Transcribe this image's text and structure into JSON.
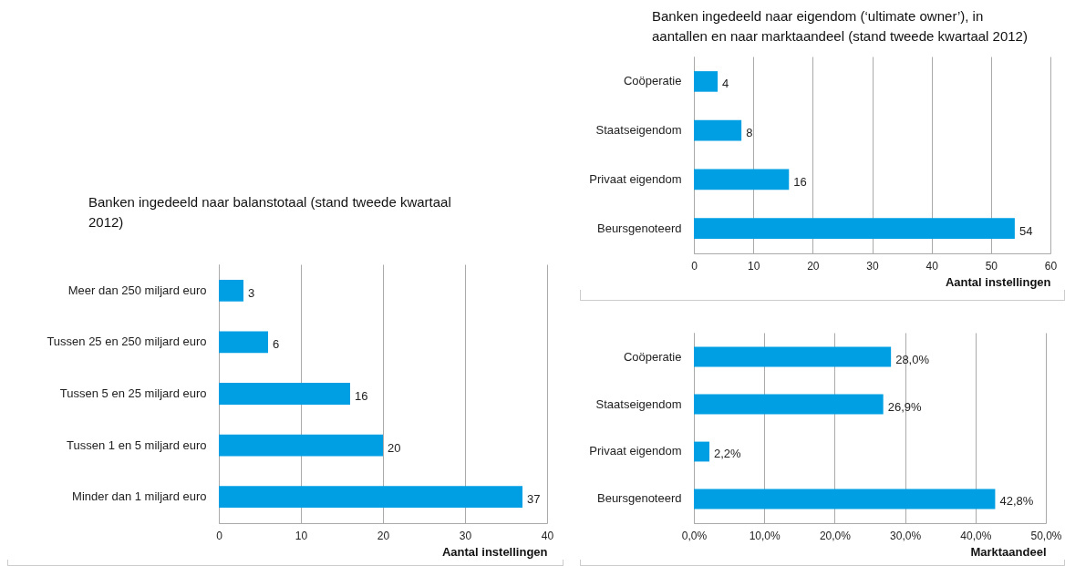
{
  "chart_data": [
    {
      "type": "bar",
      "orientation": "horizontal",
      "title": "Banken ingedeeld naar balanstotaal (stand tweede kwartaal 2012)",
      "xlabel": "Aantal instellingen",
      "categories": [
        "Meer dan 250 miljard euro",
        "Tussen 25 en 250 miljard euro",
        "Tussen 5 en 25 miljard euro",
        "Tussen 1 en 5 miljard euro",
        "Minder dan 1 miljard euro"
      ],
      "values": [
        3,
        6,
        16,
        20,
        37
      ],
      "color": "#009fe3",
      "xlim": [
        0,
        40
      ],
      "xticks": [
        0,
        10,
        20,
        30,
        40
      ],
      "grid": "x",
      "data_labels": true
    },
    {
      "type": "bar",
      "orientation": "horizontal",
      "title": "Banken ingedeeld naar eigendom (‘ultimate owner’), in aantallen en naar marktaandeel (stand tweede kwartaal 2012)",
      "xlabel": "Aantal instellingen",
      "categories": [
        "Coöperatie",
        "Staatseigendom",
        "Privaat eigendom",
        "Beursgenoteerd"
      ],
      "values": [
        4,
        8,
        16,
        54
      ],
      "color": "#009fe3",
      "xlim": [
        0,
        60
      ],
      "xticks": [
        0,
        10,
        20,
        30,
        40,
        50,
        60
      ],
      "grid": "x",
      "data_labels": true
    },
    {
      "type": "bar",
      "orientation": "horizontal",
      "xlabel": "Marktaandeel",
      "categories": [
        "Coöperatie",
        "Staatseigendom",
        "Privaat eigendom",
        "Beursgenoteerd"
      ],
      "values": [
        28.0,
        26.9,
        2.2,
        42.8
      ],
      "value_labels": [
        "28,0%",
        "26,9%",
        "2,2%",
        "42,8%"
      ],
      "color": "#009fe3",
      "xlim": [
        0,
        50
      ],
      "xticks": [
        {
          "value": 0,
          "label": "0,0%"
        },
        {
          "value": 10,
          "label": "10,0%"
        },
        {
          "value": 20,
          "label": "20,0%"
        },
        {
          "value": 30,
          "label": "30,0%"
        },
        {
          "value": 40,
          "label": "40,0%"
        },
        {
          "value": 50,
          "label": "50,0%"
        }
      ],
      "grid": "x"
    }
  ]
}
